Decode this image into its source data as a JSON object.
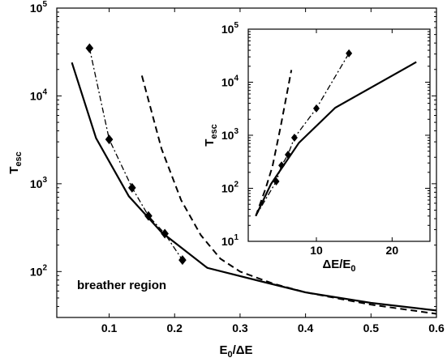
{
  "chart_data": [
    {
      "id": "main",
      "type": "line",
      "xlabel": "E_0/ΔE",
      "ylabel": "T_esc",
      "xlim": [
        0.02,
        0.6
      ],
      "ylim": [
        30,
        100000
      ],
      "yscale": "log",
      "grid": false,
      "x_ticks": [
        0.1,
        0.2,
        0.3,
        0.4,
        0.5,
        0.6
      ],
      "x_tick_labels": [
        "0.1",
        "0.2",
        "0.3",
        "0.4",
        "0.5",
        "0.6"
      ],
      "y_ticks": [
        100,
        1000,
        10000,
        100000
      ],
      "y_tick_labels": [
        [
          "10",
          "2"
        ],
        [
          "10",
          "3"
        ],
        [
          "10",
          "4"
        ],
        [
          "10",
          "5"
        ]
      ],
      "annotation": "breather region",
      "series": [
        {
          "style": "solid",
          "x": [
            0.043,
            0.08,
            0.13,
            0.18,
            0.25,
            0.33,
            0.4,
            0.5,
            0.6
          ],
          "y": [
            24000,
            3300,
            720,
            280,
            110,
            78,
            58,
            44,
            36
          ]
        },
        {
          "style": "dashed",
          "x": [
            0.15,
            0.18,
            0.21,
            0.24,
            0.27,
            0.3,
            0.35,
            0.4,
            0.5,
            0.6
          ],
          "y": [
            17000,
            2500,
            650,
            260,
            140,
            100,
            73,
            58,
            42,
            33
          ]
        },
        {
          "style": "dashdot",
          "marker": "diamond",
          "x": [
            0.07,
            0.1,
            0.135,
            0.16,
            0.185,
            0.212
          ],
          "y": [
            35000,
            3200,
            900,
            430,
            270,
            135
          ]
        }
      ]
    },
    {
      "id": "inset",
      "type": "line",
      "xlabel": "ΔE/E_0",
      "ylabel": "T_esc",
      "xlim": [
        1,
        25
      ],
      "ylim": [
        10,
        100000
      ],
      "yscale": "log",
      "grid": false,
      "x_ticks": [
        10,
        20
      ],
      "x_tick_labels": [
        "10",
        "20"
      ],
      "y_ticks": [
        10,
        100,
        1000,
        10000,
        100000
      ],
      "y_tick_labels": [
        [
          "10",
          "1"
        ],
        [
          "10",
          "2"
        ],
        [
          "10",
          "3"
        ],
        [
          "10",
          "4"
        ],
        [
          "10",
          "5"
        ]
      ],
      "series": [
        {
          "style": "solid",
          "x": [
            2,
            4,
            7.7,
            12.5,
            23.2
          ],
          "y": [
            30,
            120,
            720,
            3300,
            24000
          ]
        },
        {
          "style": "dashed",
          "x": [
            2,
            3.3,
            4.2,
            5.3,
            6.7
          ],
          "y": [
            30,
            100,
            260,
            1500,
            17000
          ]
        },
        {
          "style": "dashdot",
          "marker": "diamond",
          "x": [
            2,
            4.7,
            5.4,
            6.25,
            7.1,
            10,
            14.3
          ],
          "y": [
            30,
            135,
            270,
            430,
            900,
            3200,
            35000
          ]
        }
      ]
    }
  ]
}
